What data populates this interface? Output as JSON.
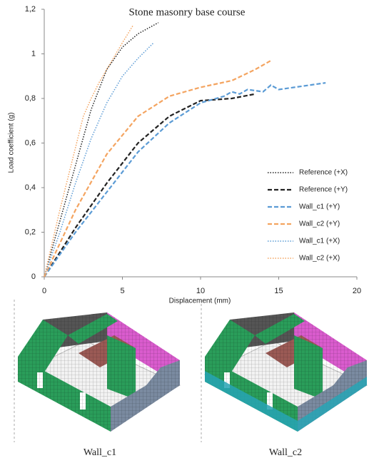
{
  "chart_data": {
    "type": "line",
    "title": "Stone masonry base course",
    "x_label": "Displacement (mm)",
    "y_label": "Load coefficient (g)",
    "xlim": [
      0,
      20
    ],
    "xticks": [
      0,
      5,
      10,
      15,
      20
    ],
    "ylim": [
      0,
      1.2
    ],
    "yticks": [
      0,
      {
        "value": 0.2,
        "label": "0,2"
      },
      {
        "value": 0.4,
        "label": "0,4"
      },
      {
        "value": 0.6,
        "label": "0,6"
      },
      {
        "value": 0.8,
        "label": "0,8"
      },
      1,
      {
        "value": 1.2,
        "label": "1,2"
      }
    ],
    "legend": "right",
    "series": [
      {
        "name": "Reference (+X)",
        "color": "#222222",
        "style": "dotted",
        "x": [
          0,
          1,
          2,
          3,
          4,
          5,
          6,
          7.3
        ],
        "values": [
          0,
          0.25,
          0.5,
          0.75,
          0.93,
          1.03,
          1.09,
          1.14
        ]
      },
      {
        "name": "Reference (+Y)",
        "color": "#222222",
        "style": "dashed",
        "x": [
          0,
          2,
          4,
          6,
          8,
          10,
          12,
          13.5
        ],
        "values": [
          0,
          0.22,
          0.42,
          0.6,
          0.72,
          0.79,
          0.8,
          0.82
        ]
      },
      {
        "name": "Wall_c1 (+Y)",
        "color": "#5b9bd5",
        "style": "dashed",
        "x": [
          0,
          2,
          4,
          6,
          8,
          10,
          11.5,
          12,
          12.5,
          13,
          14,
          14.5,
          15,
          16,
          18
        ],
        "values": [
          0,
          0.2,
          0.38,
          0.56,
          0.69,
          0.78,
          0.81,
          0.83,
          0.82,
          0.84,
          0.83,
          0.86,
          0.84,
          0.85,
          0.87
        ]
      },
      {
        "name": "Wall_c2 (+Y)",
        "color": "#f4a460",
        "style": "dashed",
        "x": [
          0,
          2,
          4,
          6,
          8,
          10,
          12,
          13.5,
          14.5
        ],
        "values": [
          0,
          0.3,
          0.55,
          0.72,
          0.81,
          0.85,
          0.88,
          0.93,
          0.97
        ]
      },
      {
        "name": "Wall_c1 (+X)",
        "color": "#5b9bd5",
        "style": "dotted",
        "x": [
          0,
          1,
          2,
          3,
          4,
          5,
          6,
          7
        ],
        "values": [
          0,
          0.2,
          0.42,
          0.62,
          0.78,
          0.9,
          0.98,
          1.05
        ]
      },
      {
        "name": "Wall_c2 (+X)",
        "color": "#f4a460",
        "style": "dotted",
        "x": [
          0,
          1,
          2,
          2.5,
          3,
          3.5,
          4,
          5,
          5.7
        ],
        "values": [
          0,
          0.3,
          0.58,
          0.72,
          0.8,
          0.87,
          0.93,
          1.05,
          1.13
        ]
      }
    ]
  },
  "images": [
    {
      "caption": "Wall_c1"
    },
    {
      "caption": "Wall_c2"
    }
  ]
}
